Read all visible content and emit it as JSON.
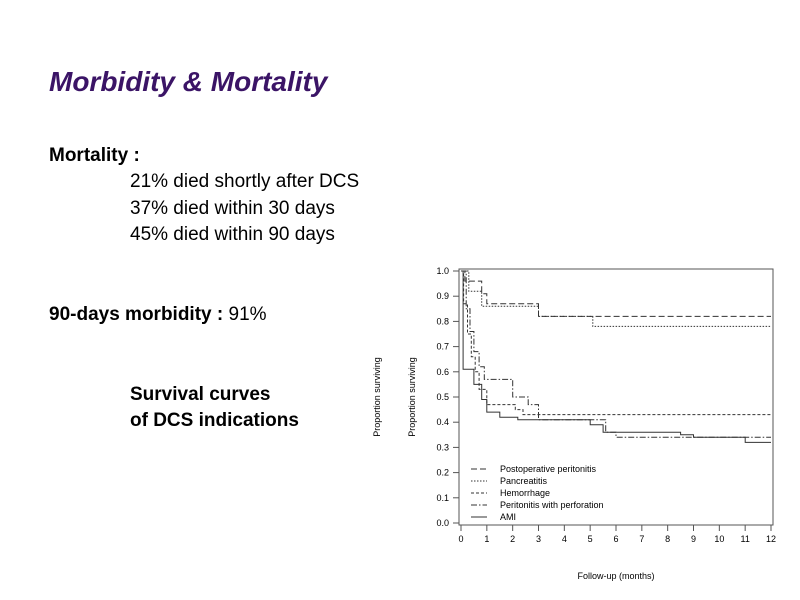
{
  "slide": {
    "title": "Morbidity & Mortality",
    "mortality_heading": "Mortality :",
    "mortality_items": [
      "21% died shortly after DCS",
      "37% died within 30 days",
      "45% died within 90 days"
    ],
    "morbidity_label": "90-days morbidity :",
    "morbidity_value": " 91%",
    "caption_line1": "Survival curves",
    "caption_line2": "of DCS indications"
  },
  "chart_data": {
    "type": "line",
    "step": true,
    "xlabel": "Follow-up (months)",
    "ylabel": "Proportion surviving",
    "xlim": [
      0,
      12
    ],
    "ylim": [
      0,
      1.0
    ],
    "xticks": [
      0,
      1,
      2,
      3,
      4,
      5,
      6,
      7,
      8,
      9,
      10,
      11,
      12
    ],
    "yticks": [
      "0.0",
      "0.1",
      "0.2",
      "0.3",
      "0.4",
      "0.5",
      "0.6",
      "0.7",
      "0.8",
      "0.9",
      "1.0"
    ],
    "legend_position": "bottom-left",
    "series": [
      {
        "name": "Postoperative peritonitis",
        "dash": "6,3",
        "x": [
          0,
          0.15,
          0.8,
          1.0,
          2.9,
          3.0,
          12
        ],
        "y": [
          1.0,
          0.96,
          0.91,
          0.87,
          0.87,
          0.82,
          0.82
        ]
      },
      {
        "name": "Pancreatitis",
        "dash": "1.5,1.5",
        "x": [
          0,
          0.3,
          0.8,
          2.8,
          3.0,
          5.1,
          12
        ],
        "y": [
          1.0,
          0.92,
          0.86,
          0.86,
          0.82,
          0.78,
          0.78
        ]
      },
      {
        "name": "Hemorrhage",
        "dash": "3,2",
        "x": [
          0,
          0.1,
          0.25,
          0.4,
          0.55,
          0.7,
          1.0,
          2.1,
          2.4,
          12
        ],
        "y": [
          1.0,
          0.87,
          0.75,
          0.66,
          0.6,
          0.53,
          0.47,
          0.45,
          0.43,
          0.43
        ]
      },
      {
        "name": "Peritonitis with perforation",
        "dash": "6,2,1.5,2",
        "x": [
          0,
          0.2,
          0.35,
          0.5,
          0.7,
          0.9,
          2.0,
          2.6,
          3.0,
          5.0,
          5.6,
          6.0,
          12
        ],
        "y": [
          1.0,
          0.85,
          0.76,
          0.68,
          0.62,
          0.57,
          0.5,
          0.47,
          0.41,
          0.41,
          0.36,
          0.34,
          0.34
        ]
      },
      {
        "name": "AMI",
        "dash": "",
        "x": [
          0,
          0.08,
          0.5,
          0.8,
          1.0,
          1.5,
          2.2,
          5.0,
          5.5,
          8.5,
          9.0,
          11.0,
          12
        ],
        "y": [
          1.0,
          0.61,
          0.55,
          0.49,
          0.44,
          0.42,
          0.41,
          0.39,
          0.36,
          0.35,
          0.34,
          0.32,
          0.32
        ]
      }
    ]
  }
}
